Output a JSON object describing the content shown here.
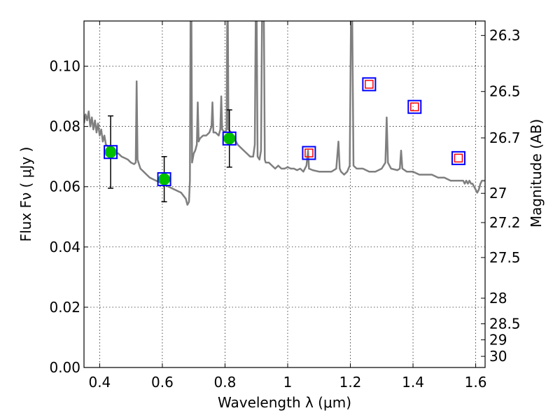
{
  "chart_data": {
    "type": "line",
    "xlabel": "Wavelength  λ (μm)",
    "ylabel": "Flux  Fν  ( μJy )",
    "ylabel_right": "Magnitude (AB)",
    "xlim": [
      0.35,
      1.63
    ],
    "ylim": [
      0.0,
      0.115
    ],
    "grid": true,
    "x_ticks": [
      0.4,
      0.6,
      0.8,
      1.0,
      1.2,
      1.4,
      1.6
    ],
    "x_tick_labels": [
      "0.4",
      "0.6",
      "0.8",
      "1",
      "1.2",
      "1.4",
      "1.6"
    ],
    "y_ticks": [
      0.0,
      0.02,
      0.04,
      0.06,
      0.08,
      0.1
    ],
    "y_tick_labels": [
      "0.00",
      "0.02",
      "0.04",
      "0.06",
      "0.08",
      "0.10"
    ],
    "right_ticks": [
      {
        "label": "26.3",
        "flux": 0.1102
      },
      {
        "label": "26.5",
        "flux": 0.0916
      },
      {
        "label": "26.7",
        "flux": 0.0762
      },
      {
        "label": "27",
        "flux": 0.0578
      },
      {
        "label": "27.2",
        "flux": 0.0481
      },
      {
        "label": "27.5",
        "flux": 0.0365
      },
      {
        "label": "28",
        "flux": 0.023
      },
      {
        "label": "28.5",
        "flux": 0.0145
      },
      {
        "label": "29",
        "flux": 0.0092
      },
      {
        "label": "30",
        "flux": 0.0037
      }
    ],
    "colors": {
      "spectrum": "#7f7f7f",
      "detection_fill": "#00bf00",
      "model_box": "#0000ff",
      "upper_limit_box": "#ff0000",
      "error_bar": "#000000"
    },
    "series": [
      {
        "kind": "spectrum",
        "points": [
          [
            0.35,
            0.081
          ],
          [
            0.355,
            0.084
          ],
          [
            0.36,
            0.082
          ],
          [
            0.365,
            0.085
          ],
          [
            0.37,
            0.08
          ],
          [
            0.375,
            0.083
          ],
          [
            0.38,
            0.079
          ],
          [
            0.385,
            0.082
          ],
          [
            0.39,
            0.078
          ],
          [
            0.395,
            0.081
          ],
          [
            0.4,
            0.077
          ],
          [
            0.405,
            0.079
          ],
          [
            0.41,
            0.075
          ],
          [
            0.415,
            0.077
          ],
          [
            0.42,
            0.074
          ],
          [
            0.43,
            0.073
          ],
          [
            0.44,
            0.072
          ],
          [
            0.45,
            0.0715
          ],
          [
            0.46,
            0.071
          ],
          [
            0.47,
            0.07
          ],
          [
            0.48,
            0.0695
          ],
          [
            0.49,
            0.069
          ],
          [
            0.5,
            0.068
          ],
          [
            0.51,
            0.0675
          ],
          [
            0.515,
            0.068
          ],
          [
            0.518,
            0.095
          ],
          [
            0.521,
            0.069
          ],
          [
            0.53,
            0.066
          ],
          [
            0.54,
            0.065
          ],
          [
            0.55,
            0.064
          ],
          [
            0.56,
            0.063
          ],
          [
            0.57,
            0.0625
          ],
          [
            0.58,
            0.062
          ],
          [
            0.59,
            0.0615
          ],
          [
            0.6,
            0.061
          ],
          [
            0.62,
            0.06
          ],
          [
            0.64,
            0.059
          ],
          [
            0.66,
            0.058
          ],
          [
            0.675,
            0.056
          ],
          [
            0.68,
            0.054
          ],
          [
            0.685,
            0.055
          ],
          [
            0.688,
            0.062
          ],
          [
            0.69,
            0.115
          ],
          [
            0.693,
            0.115
          ],
          [
            0.695,
            0.068
          ],
          [
            0.7,
            0.071
          ],
          [
            0.705,
            0.072
          ],
          [
            0.71,
            0.074
          ],
          [
            0.713,
            0.088
          ],
          [
            0.716,
            0.075
          ],
          [
            0.72,
            0.076
          ],
          [
            0.73,
            0.077
          ],
          [
            0.74,
            0.077
          ],
          [
            0.75,
            0.078
          ],
          [
            0.757,
            0.08
          ],
          [
            0.76,
            0.088
          ],
          [
            0.763,
            0.078
          ],
          [
            0.77,
            0.078
          ],
          [
            0.78,
            0.077
          ],
          [
            0.785,
            0.079
          ],
          [
            0.788,
            0.09
          ],
          [
            0.791,
            0.079
          ],
          [
            0.8,
            0.078
          ],
          [
            0.805,
            0.079
          ],
          [
            0.807,
            0.115
          ],
          [
            0.809,
            0.115
          ],
          [
            0.811,
            0.079
          ],
          [
            0.82,
            0.078
          ],
          [
            0.83,
            0.076
          ],
          [
            0.84,
            0.074
          ],
          [
            0.85,
            0.073
          ],
          [
            0.86,
            0.072
          ],
          [
            0.87,
            0.071
          ],
          [
            0.88,
            0.07
          ],
          [
            0.89,
            0.07
          ],
          [
            0.895,
            0.074
          ],
          [
            0.898,
            0.115
          ],
          [
            0.901,
            0.115
          ],
          [
            0.904,
            0.07
          ],
          [
            0.91,
            0.069
          ],
          [
            0.915,
            0.072
          ],
          [
            0.918,
            0.115
          ],
          [
            0.921,
            0.115
          ],
          [
            0.924,
            0.115
          ],
          [
            0.927,
            0.069
          ],
          [
            0.93,
            0.068
          ],
          [
            0.94,
            0.068
          ],
          [
            0.95,
            0.067
          ],
          [
            0.96,
            0.066
          ],
          [
            0.97,
            0.067
          ],
          [
            0.98,
            0.066
          ],
          [
            0.99,
            0.066
          ],
          [
            1.0,
            0.0665
          ],
          [
            1.01,
            0.066
          ],
          [
            1.02,
            0.066
          ],
          [
            1.03,
            0.0655
          ],
          [
            1.04,
            0.066
          ],
          [
            1.05,
            0.065
          ],
          [
            1.06,
            0.067
          ],
          [
            1.065,
            0.072
          ],
          [
            1.068,
            0.066
          ],
          [
            1.08,
            0.0655
          ],
          [
            1.1,
            0.065
          ],
          [
            1.12,
            0.065
          ],
          [
            1.14,
            0.065
          ],
          [
            1.155,
            0.066
          ],
          [
            1.162,
            0.075
          ],
          [
            1.166,
            0.066
          ],
          [
            1.17,
            0.065
          ],
          [
            1.18,
            0.064
          ],
          [
            1.19,
            0.065
          ],
          [
            1.198,
            0.067
          ],
          [
            1.202,
            0.115
          ],
          [
            1.206,
            0.115
          ],
          [
            1.21,
            0.067
          ],
          [
            1.22,
            0.066
          ],
          [
            1.24,
            0.066
          ],
          [
            1.26,
            0.065
          ],
          [
            1.28,
            0.065
          ],
          [
            1.3,
            0.066
          ],
          [
            1.312,
            0.068
          ],
          [
            1.316,
            0.083
          ],
          [
            1.32,
            0.068
          ],
          [
            1.33,
            0.066
          ],
          [
            1.35,
            0.0655
          ],
          [
            1.358,
            0.066
          ],
          [
            1.362,
            0.072
          ],
          [
            1.366,
            0.066
          ],
          [
            1.38,
            0.065
          ],
          [
            1.4,
            0.065
          ],
          [
            1.42,
            0.064
          ],
          [
            1.44,
            0.064
          ],
          [
            1.46,
            0.064
          ],
          [
            1.48,
            0.063
          ],
          [
            1.5,
            0.063
          ],
          [
            1.52,
            0.062
          ],
          [
            1.54,
            0.062
          ],
          [
            1.56,
            0.062
          ],
          [
            1.565,
            0.061
          ],
          [
            1.57,
            0.062
          ],
          [
            1.575,
            0.061
          ],
          [
            1.58,
            0.062
          ],
          [
            1.585,
            0.061
          ],
          [
            1.59,
            0.061
          ],
          [
            1.595,
            0.06
          ],
          [
            1.6,
            0.059
          ],
          [
            1.605,
            0.058
          ],
          [
            1.61,
            0.059
          ],
          [
            1.615,
            0.061
          ],
          [
            1.62,
            0.062
          ],
          [
            1.63,
            0.062
          ]
        ]
      },
      {
        "kind": "detections",
        "points": [
          {
            "x": 0.435,
            "y": 0.0715,
            "yerr_low": 0.0595,
            "yerr_high": 0.0835
          },
          {
            "x": 0.606,
            "y": 0.0625,
            "yerr_low": 0.055,
            "yerr_high": 0.07
          },
          {
            "x": 0.814,
            "y": 0.076,
            "yerr_low": 0.0665,
            "yerr_high": 0.0855
          }
        ]
      },
      {
        "kind": "model_boxes",
        "points": [
          {
            "x": 0.435,
            "y": 0.0715
          },
          {
            "x": 0.606,
            "y": 0.0625
          },
          {
            "x": 0.814,
            "y": 0.076
          },
          {
            "x": 1.068,
            "y": 0.0712
          },
          {
            "x": 1.26,
            "y": 0.094
          },
          {
            "x": 1.405,
            "y": 0.0865
          },
          {
            "x": 1.545,
            "y": 0.0695
          }
        ]
      },
      {
        "kind": "upper_limits",
        "points": [
          {
            "x": 1.068,
            "y": 0.0712
          },
          {
            "x": 1.26,
            "y": 0.094
          },
          {
            "x": 1.405,
            "y": 0.0865
          },
          {
            "x": 1.545,
            "y": 0.0695
          }
        ]
      }
    ]
  }
}
